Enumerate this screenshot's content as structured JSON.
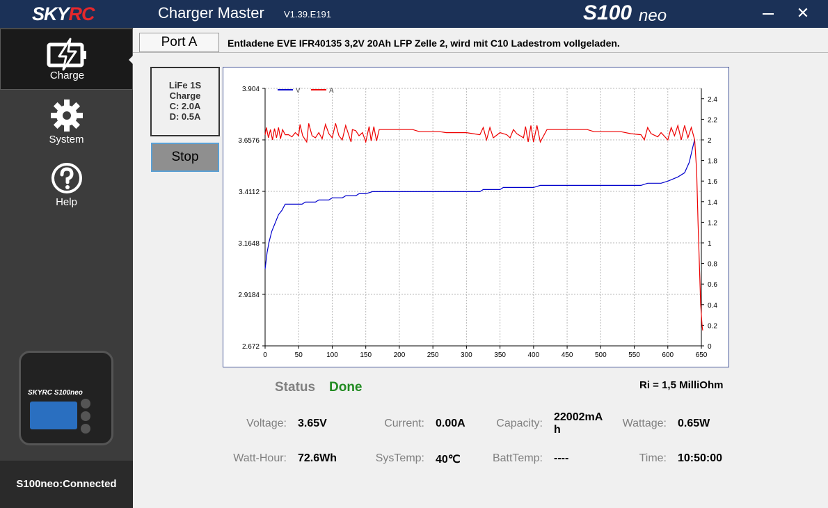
{
  "titlebar": {
    "brand_main": "SKY",
    "brand_accent": "RC",
    "app_title": "Charger Master",
    "version": "V1.39.E191",
    "model_main": "S100",
    "model_suffix": "neo",
    "close_glyph": "✕",
    "minimize_icon": "minimize-icon",
    "close_icon": "close-icon"
  },
  "sidebar": {
    "items": [
      {
        "label": "Charge",
        "icon": "charge-battery-icon",
        "active": true
      },
      {
        "label": "System",
        "icon": "gear-icon",
        "active": false
      },
      {
        "label": "Help",
        "icon": "help-icon",
        "active": false
      }
    ],
    "device": {
      "logo": "SKYRC S100neo"
    },
    "status": "S100neo:Connected"
  },
  "port": {
    "tab_label": "Port A",
    "description": "Entladene EVE IFR40135 3,2V 20Ah LFP Zelle 2, wird mit C10 Ladestrom vollgeladen."
  },
  "program": {
    "line1": "LiFe 1S",
    "line2": "Charge",
    "line3": "C: 2.0A",
    "line4": "D: 0.5A",
    "stop_label": "Stop"
  },
  "status": {
    "label": "Status",
    "value": "Done",
    "ri": "Ri = 1,5 MilliOhm"
  },
  "readings": {
    "voltage_label": "Voltage:",
    "voltage": "3.65V",
    "current_label": "Current:",
    "current": "0.00A",
    "capacity_label": "Capacity:",
    "capacity_line1": "22002mA",
    "capacity_line2": "h",
    "wattage_label": "Wattage:",
    "wattage": "0.65W",
    "watthour_label": "Watt-Hour:",
    "watthour": "72.6Wh",
    "systemp_label": "SysTemp:",
    "systemp": "40℃",
    "batttemp_label": "BattTemp:",
    "batttemp": "----",
    "time_label": "Time:",
    "time": "10:50:00"
  },
  "colors": {
    "voltage_series": "#0000cc",
    "current_series": "#ee0000",
    "titlebar": "#1b3157",
    "status_done": "#228b22"
  },
  "chart_data": {
    "type": "line",
    "xlim": [
      0,
      650
    ],
    "x_ticks": [
      "0",
      "50",
      "100",
      "150",
      "200",
      "250",
      "300",
      "350",
      "400",
      "450",
      "500",
      "550",
      "600",
      "650"
    ],
    "y_left_ticks": [
      "3.904",
      "3.6576",
      "3.4112",
      "3.1648",
      "2.9184",
      "2.672"
    ],
    "y_left_lim": [
      2.672,
      3.904
    ],
    "y_right_ticks": [
      "2.4",
      "2.2",
      "2",
      "1.8",
      "1.6",
      "1.4",
      "1.2",
      "1",
      "0.8",
      "0.6",
      "0.4",
      "0.2",
      "0"
    ],
    "y_right_lim": [
      0,
      2.5
    ],
    "grid": true,
    "legend": "top-left",
    "series": [
      {
        "name": "V",
        "axis": "left",
        "points": [
          [
            0,
            3.04
          ],
          [
            3,
            3.12
          ],
          [
            6,
            3.17
          ],
          [
            10,
            3.22
          ],
          [
            15,
            3.26
          ],
          [
            20,
            3.3
          ],
          [
            25,
            3.32
          ],
          [
            30,
            3.35
          ],
          [
            40,
            3.35
          ],
          [
            55,
            3.35
          ],
          [
            60,
            3.36
          ],
          [
            75,
            3.36
          ],
          [
            80,
            3.37
          ],
          [
            95,
            3.37
          ],
          [
            100,
            3.38
          ],
          [
            115,
            3.38
          ],
          [
            120,
            3.39
          ],
          [
            135,
            3.39
          ],
          [
            140,
            3.4
          ],
          [
            150,
            3.4
          ],
          [
            160,
            3.41
          ],
          [
            320,
            3.41
          ],
          [
            325,
            3.42
          ],
          [
            350,
            3.42
          ],
          [
            355,
            3.43
          ],
          [
            400,
            3.43
          ],
          [
            410,
            3.44
          ],
          [
            560,
            3.44
          ],
          [
            570,
            3.45
          ],
          [
            590,
            3.45
          ],
          [
            600,
            3.46
          ],
          [
            615,
            3.48
          ],
          [
            625,
            3.5
          ],
          [
            632,
            3.55
          ],
          [
            637,
            3.62
          ],
          [
            640,
            3.66
          ]
        ]
      },
      {
        "name": "A",
        "axis": "right",
        "points": [
          [
            0,
            2.05
          ],
          [
            2,
            2.12
          ],
          [
            5,
            2.02
          ],
          [
            8,
            2.1
          ],
          [
            11,
            2.0
          ],
          [
            14,
            2.11
          ],
          [
            17,
            2.02
          ],
          [
            20,
            2.12
          ],
          [
            23,
            2.01
          ],
          [
            26,
            2.1
          ],
          [
            30,
            2.05
          ],
          [
            35,
            2.05
          ],
          [
            40,
            2.03
          ],
          [
            45,
            2.07
          ],
          [
            50,
            2.04
          ],
          [
            52,
            2.15
          ],
          [
            56,
            2.04
          ],
          [
            62,
            1.98
          ],
          [
            65,
            2.16
          ],
          [
            70,
            2.04
          ],
          [
            75,
            2.02
          ],
          [
            80,
            2.07
          ],
          [
            85,
            2.01
          ],
          [
            90,
            2.15
          ],
          [
            95,
            2.06
          ],
          [
            100,
            2.02
          ],
          [
            105,
            2.16
          ],
          [
            110,
            2.04
          ],
          [
            115,
            2.0
          ],
          [
            120,
            2.14
          ],
          [
            125,
            2.04
          ],
          [
            128,
            1.98
          ],
          [
            130,
            2.1
          ],
          [
            135,
            2.09
          ],
          [
            140,
            2.04
          ],
          [
            145,
            2.07
          ],
          [
            150,
            1.98
          ],
          [
            155,
            2.13
          ],
          [
            158,
            1.99
          ],
          [
            162,
            2.13
          ],
          [
            166,
            1.99
          ],
          [
            170,
            2.1
          ],
          [
            220,
            2.1
          ],
          [
            230,
            2.08
          ],
          [
            260,
            2.08
          ],
          [
            270,
            2.07
          ],
          [
            300,
            2.07
          ],
          [
            310,
            2.06
          ],
          [
            320,
            2.05
          ],
          [
            325,
            2.12
          ],
          [
            330,
            2.0
          ],
          [
            335,
            2.12
          ],
          [
            340,
            2.02
          ],
          [
            350,
            2.07
          ],
          [
            360,
            2.05
          ],
          [
            365,
            2.02
          ],
          [
            370,
            2.1
          ],
          [
            375,
            2.06
          ],
          [
            385,
            2.02
          ],
          [
            388,
            2.13
          ],
          [
            392,
            1.98
          ],
          [
            396,
            2.14
          ],
          [
            400,
            1.98
          ],
          [
            405,
            2.14
          ],
          [
            410,
            1.98
          ],
          [
            420,
            2.1
          ],
          [
            480,
            2.1
          ],
          [
            490,
            2.08
          ],
          [
            530,
            2.08
          ],
          [
            545,
            2.06
          ],
          [
            560,
            2.05
          ],
          [
            565,
            2.0
          ],
          [
            570,
            2.12
          ],
          [
            575,
            2.06
          ],
          [
            585,
            2.03
          ],
          [
            590,
            2.07
          ],
          [
            600,
            2.0
          ],
          [
            605,
            2.12
          ],
          [
            610,
            2.04
          ],
          [
            615,
            2.14
          ],
          [
            620,
            2.0
          ],
          [
            625,
            2.14
          ],
          [
            630,
            2.02
          ],
          [
            635,
            2.12
          ],
          [
            640,
            2.0
          ],
          [
            643,
            1.7
          ],
          [
            645,
            1.2
          ],
          [
            647,
            0.8
          ],
          [
            649,
            0.4
          ],
          [
            651,
            0.2
          ],
          [
            652,
            0.15
          ]
        ]
      }
    ]
  }
}
